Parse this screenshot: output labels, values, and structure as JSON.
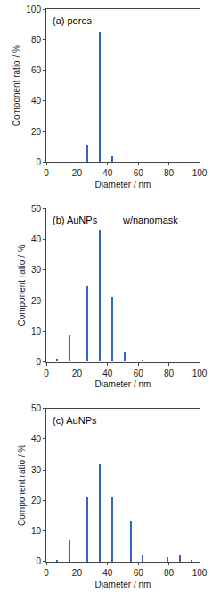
{
  "chart_data": [
    {
      "type": "bar",
      "title": "(a) pores",
      "x": [
        27,
        35,
        43
      ],
      "values": [
        11,
        85,
        4
      ],
      "color": "#3366cc",
      "xlabel": "Diameter / nm",
      "ylabel": "Component ratio / %",
      "xlim": [
        0,
        100
      ],
      "xticks": [
        0,
        20,
        40,
        60,
        80,
        100
      ],
      "ylim": [
        0,
        100
      ],
      "yticks": [
        0,
        20,
        40,
        60,
        80,
        100
      ],
      "grid": false
    },
    {
      "type": "bar",
      "title": "(b) AuNPs",
      "subtitle": "w/nanomask",
      "x": [
        7,
        15,
        27,
        35,
        43,
        51,
        63
      ],
      "values": [
        1.0,
        8.5,
        24.5,
        43,
        21,
        3,
        0.8
      ],
      "color": "#3366cc",
      "xlabel": "Diameter / nm",
      "ylabel": "Component ratio / %",
      "xlim": [
        0,
        100
      ],
      "xticks": [
        0,
        20,
        40,
        60,
        80,
        100
      ],
      "ylim": [
        0,
        50
      ],
      "yticks": [
        0,
        10,
        20,
        30,
        40,
        50
      ],
      "grid": false
    },
    {
      "type": "bar",
      "title": "(c) AuNPs",
      "x": [
        7,
        15,
        27,
        35,
        43,
        55,
        63,
        79,
        87,
        95
      ],
      "values": [
        0.8,
        7,
        21,
        32,
        21,
        13.5,
        2.5,
        1.5,
        2,
        0.8
      ],
      "color": "#3366cc",
      "xlabel": "Diameter / nm",
      "ylabel": "Component ratio / %",
      "xlim": [
        0,
        100
      ],
      "xticks": [
        0,
        20,
        40,
        60,
        80,
        100
      ],
      "ylim": [
        0,
        50
      ],
      "yticks": [
        0,
        10,
        20,
        30,
        40,
        50
      ],
      "grid": false
    }
  ]
}
